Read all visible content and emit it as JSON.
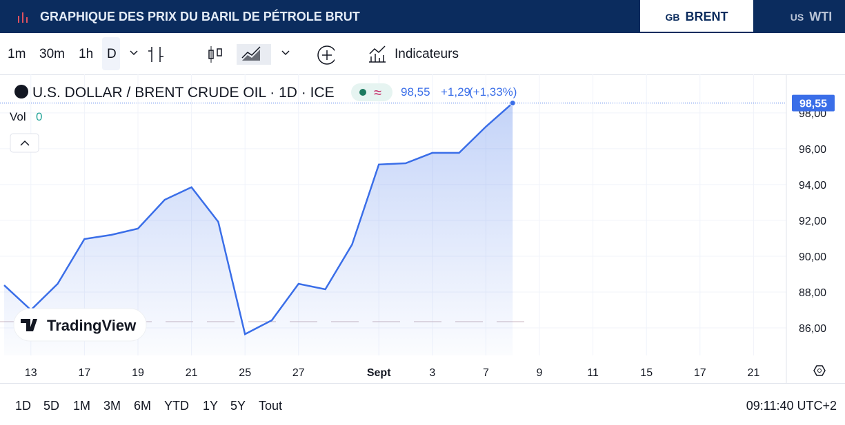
{
  "header": {
    "title": "GRAPHIQUE DES PRIX DU BARIL DE PÉTROLE BRUT",
    "tabs": [
      {
        "flag": "GB",
        "label": "BRENT"
      },
      {
        "flag": "US",
        "label": "WTI"
      }
    ]
  },
  "toolbar": {
    "intervals": [
      "1m",
      "30m",
      "1h",
      "D"
    ],
    "indicators": "Indicateurs"
  },
  "legend": {
    "symbol": "U.S. DOLLAR / BRENT CRUDE OIL · 1D · ICE",
    "price": "98,55",
    "change": "+1,29",
    "change_pct": "(+1,33%)",
    "vol_label": "Vol",
    "vol_value": "0"
  },
  "chart_data": {
    "type": "area",
    "color": "#3a6ee8",
    "categories": [
      null,
      "13",
      null,
      "17",
      null,
      "19",
      null,
      "21",
      null,
      "25",
      null,
      "27",
      null,
      null,
      "Sept",
      null,
      "3",
      null,
      "7",
      null,
      "9",
      null,
      "11",
      null,
      "15",
      null,
      "17",
      null,
      "21"
    ],
    "values": [
      88.38,
      87.0,
      88.46,
      90.96,
      91.19,
      91.54,
      93.15,
      93.85,
      91.92,
      85.65,
      86.42,
      88.46,
      88.15,
      90.65,
      95.12,
      95.19,
      95.77,
      95.77,
      97.23,
      98.55,
      null,
      null,
      null,
      null,
      null,
      null,
      null,
      null,
      null
    ],
    "last_value_label": "98,55",
    "ylim": [
      84.46,
      100.15
    ],
    "yticks": [
      {
        "value": 86,
        "label": "86,00"
      },
      {
        "value": 88,
        "label": "88,00"
      },
      {
        "value": 90,
        "label": "90,00"
      },
      {
        "value": 92,
        "label": "92,00"
      },
      {
        "value": 94,
        "label": "94,00"
      },
      {
        "value": 96,
        "label": "96,00"
      },
      {
        "value": 98,
        "label": "98,00"
      }
    ],
    "grid": true,
    "watermark": "TradingView"
  },
  "footer": {
    "ranges": [
      "1D",
      "5D",
      "1M",
      "3M",
      "6M",
      "YTD",
      "1Y",
      "5Y",
      "Tout"
    ],
    "clock": "09:11:40 UTC+2"
  }
}
